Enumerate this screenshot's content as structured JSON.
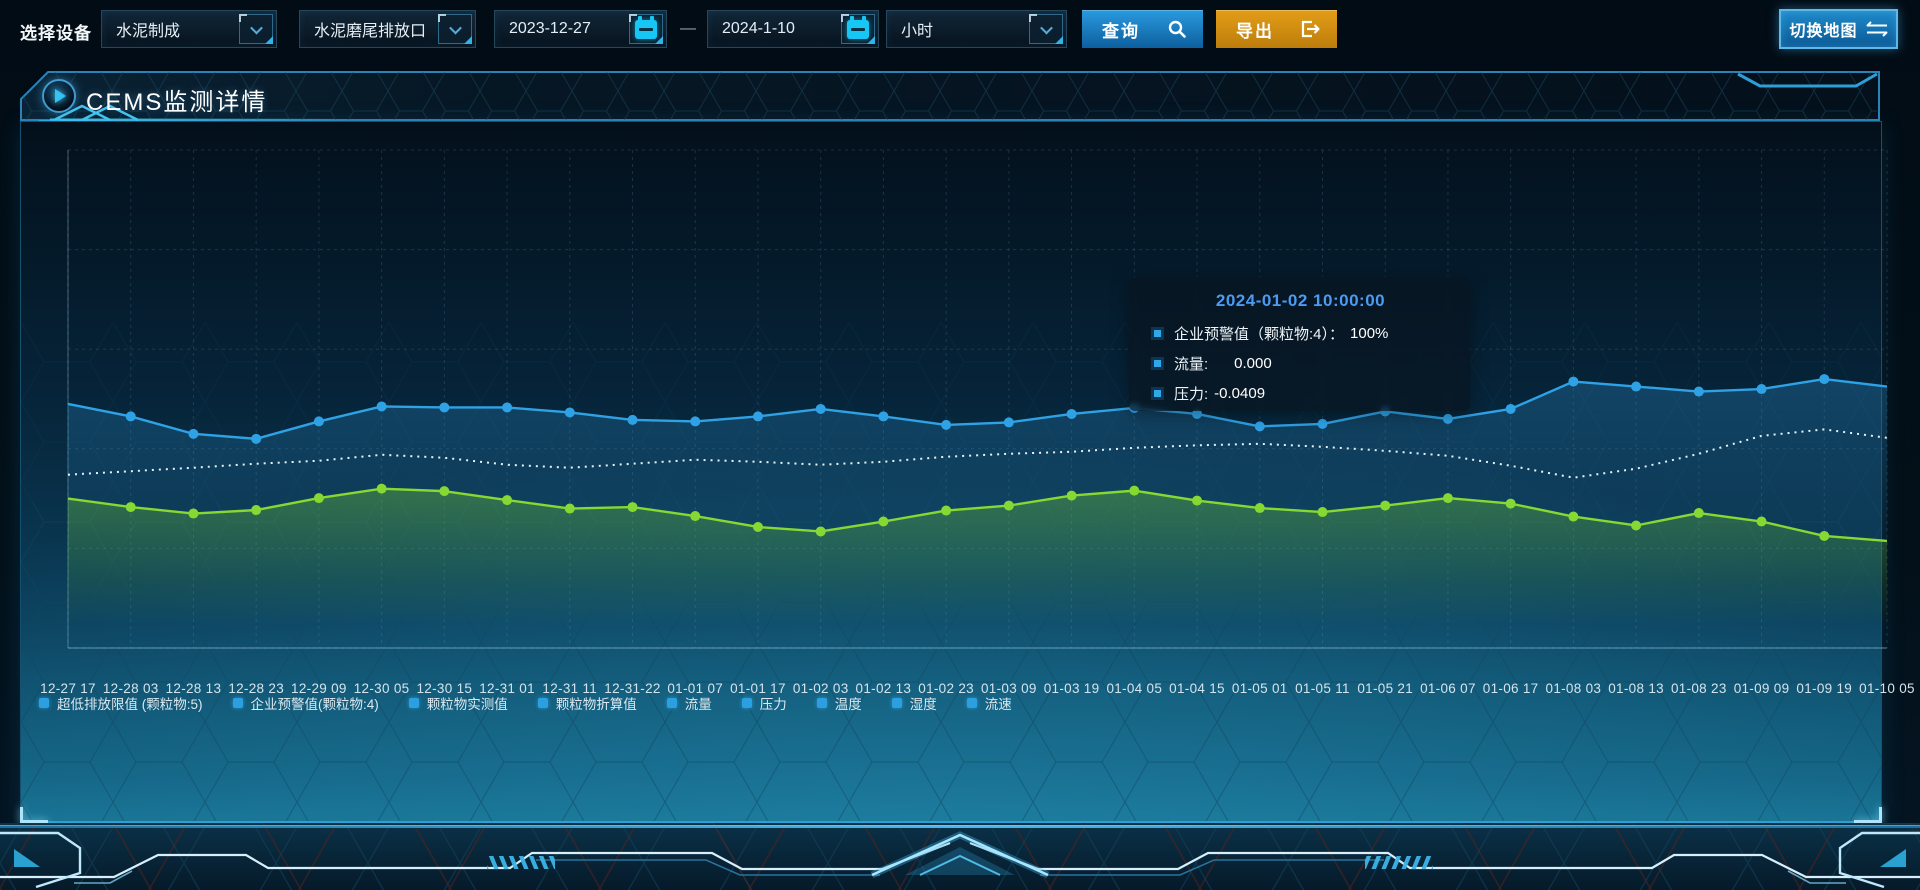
{
  "toolbar": {
    "device_label": "选择设备",
    "device_select": {
      "value": "水泥制成"
    },
    "outlet_select": {
      "value": "水泥磨尾排放口"
    },
    "date_start": "2023-12-27",
    "date_separator": "—",
    "date_end": "2024-1-10",
    "interval_select": {
      "value": "小时"
    },
    "query_button": "查询",
    "export_button": "导出",
    "switch_map_button": "切换地图"
  },
  "panel": {
    "title": "CEMS监测详情"
  },
  "tooltip": {
    "title": "2024-01-02 10:00:00",
    "rows": [
      {
        "label": "企业预警值（颗粒物:4）：",
        "value": "100%"
      },
      {
        "label": "流量:",
        "value": "0.000"
      },
      {
        "label": "压力:",
        "value": "-0.0409"
      }
    ]
  },
  "legend": [
    "超低排放限值 (颗粒物:5)",
    "企业预警值(颗粒物:4)",
    "颗粒物实测值",
    "颗粒物折算值",
    "流量",
    "压力",
    "温度",
    "湿度",
    "流速"
  ],
  "colors": {
    "accent_cyan": "#17c6f4",
    "query_blue": "#1a84c6",
    "export_orange": "#d8920f",
    "tooltip_title_blue": "#4b9bf0",
    "legend_marker_blue": "#2b9fe0",
    "series_blue": "#2fa2e6",
    "series_white": "#e8f3f8",
    "series_green": "#86d832"
  },
  "chart_data": {
    "type": "line",
    "title": "CEMS监测详情",
    "xlabel": "",
    "ylabel": "",
    "y_axis_labels_visible": false,
    "grid": "dashed",
    "legend_position": "bottom",
    "ylim": [
      0,
      100
    ],
    "note": "y-axis unlabeled in source; values are estimated percent-of-plot-height (0=bottom axis, 100=plot top)",
    "x_labels": [
      "12-27 17",
      "12-28 03",
      "12-28 13",
      "12-28 23",
      "12-29 09",
      "12-30 05",
      "12-30 15",
      "12-31 01",
      "12-31 11",
      "12-31-22",
      "01-01 07",
      "01-01 17",
      "01-02 03",
      "01-02 13",
      "01-02 23",
      "01-03 09",
      "01-03 19",
      "01-04 05",
      "01-04 15",
      "01-05 01",
      "01-05 11",
      "01-05 21",
      "01-06 07",
      "01-06 17",
      "01-08 03",
      "01-08 13",
      "01-08 23",
      "01-09 09",
      "01-09 19",
      "01-10 05"
    ],
    "series": [
      {
        "name": "企业预警值(颗粒物:4)",
        "color": "#2fa2e6",
        "style": "solid-dots",
        "area": true,
        "values": [
          49,
          46.5,
          43,
          42,
          45.5,
          48.5,
          48.3,
          48.3,
          47.3,
          45.8,
          45.5,
          46.5,
          48,
          46.5,
          44.8,
          45.3,
          47,
          48.2,
          47,
          44.5,
          45,
          47.5,
          46,
          48,
          53.5,
          52.5,
          51.5,
          52,
          54,
          52.5
        ]
      },
      {
        "name": "流量",
        "color": "#e8f3f8",
        "style": "dotted",
        "area": false,
        "values": [
          34.8,
          35.5,
          36.2,
          37,
          37.6,
          38.8,
          38.2,
          36.8,
          36.2,
          37,
          37.8,
          37.4,
          36.8,
          37.4,
          38.4,
          39,
          39.4,
          40.2,
          40.7,
          41,
          40.4,
          39.6,
          38.6,
          36.6,
          34.2,
          36,
          39,
          42.6,
          43.9,
          42.2
        ]
      },
      {
        "name": "压力",
        "color": "#86d832",
        "style": "solid-dots",
        "area": true,
        "values": [
          30,
          28.3,
          27,
          27.7,
          30.1,
          32,
          31.5,
          29.7,
          28,
          28.3,
          26.5,
          24.3,
          23.4,
          25.4,
          27.6,
          28.6,
          30.6,
          31.6,
          29.6,
          28.1,
          27.3,
          28.6,
          30.1,
          29,
          26.4,
          24.6,
          27.1,
          25.4,
          22.5,
          21.5
        ]
      }
    ]
  }
}
